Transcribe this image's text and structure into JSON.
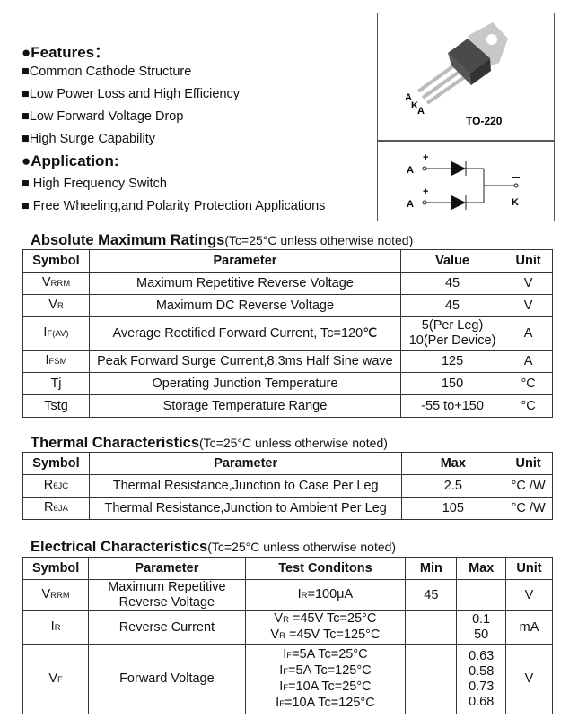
{
  "features": {
    "title": "●Features：",
    "items": [
      "■Common Cathode Structure",
      "■Low Power Loss and High Efficiency",
      "■Low Forward Voltage Drop",
      "■High Surge Capability"
    ]
  },
  "application": {
    "title": "●Application:",
    "items": [
      "■  High Frequency Switch",
      "■  Free Wheeling,and Polarity Protection Applications"
    ]
  },
  "package": {
    "name": "TO-220",
    "pins": [
      "A",
      "K",
      "A"
    ],
    "schematic": {
      "anode_labels": [
        "A",
        "A"
      ],
      "cathode_label": "K",
      "plus": "+",
      "minus": "—"
    }
  },
  "abs_max": {
    "title": "Absolute Maximum Ratings",
    "note": "(Tc=25°C unless otherwise noted)",
    "headers": [
      "Symbol",
      "Parameter",
      "Value",
      "Unit"
    ],
    "rows": [
      [
        {
          "b": "V",
          "s": "RRM"
        },
        "Maximum Repetitive Reverse Voltage",
        "45",
        "V"
      ],
      [
        {
          "b": "V",
          "s": "R"
        },
        "Maximum DC Reverse Voltage",
        "45",
        "V"
      ],
      [
        {
          "b": "I",
          "s": "F(AV)"
        },
        "Average Rectified Forward Current, Tc=120℃",
        [
          "5(Per Leg)",
          "10(Per Device)"
        ],
        "A"
      ],
      [
        {
          "b": "I",
          "s": "FSM"
        },
        "Peak Forward Surge Current,8.3ms Half Sine wave",
        "125",
        "A"
      ],
      [
        "Tj",
        "Operating Junction Temperature",
        "150",
        "°C"
      ],
      [
        "Tstg",
        "Storage Temperature Range",
        "-55 to+150",
        "°C"
      ]
    ]
  },
  "thermal": {
    "title": "Thermal Characteristics",
    "note": "(Tc=25°C unless otherwise noted)",
    "headers": [
      "Symbol",
      "Parameter",
      "Max",
      "Unit"
    ],
    "rows": [
      [
        {
          "b": "R",
          "s": "θJC"
        },
        "Thermal Resistance,Junction to Case Per Leg",
        "2.5",
        "°C /W"
      ],
      [
        {
          "b": "R",
          "s": "θJA"
        },
        "Thermal Resistance,Junction to Ambient Per Leg",
        "105",
        "°C /W"
      ]
    ]
  },
  "electrical": {
    "title": "Electrical Characteristics",
    "note": "(Tc=25°C unless otherwise noted)",
    "headers": [
      "Symbol",
      "Parameter",
      "Test Conditons",
      "Min",
      "Max",
      "Unit"
    ],
    "rows": [
      [
        {
          "b": "V",
          "s": "RRM"
        },
        [
          "Maximum Repetitive",
          "Reverse Voltage"
        ],
        [
          {
            "b": "I",
            "s": "R",
            "r": "=100μA"
          }
        ],
        "45",
        "",
        "V"
      ],
      [
        {
          "b": "I",
          "s": "R"
        },
        "Reverse Current",
        [
          {
            "b": "V",
            "s": "R",
            "r": " =45V   Tc=25°C"
          },
          {
            "b": "V",
            "s": "R",
            "r": " =45V   Tc=125°C"
          }
        ],
        "",
        [
          "0.1",
          "50"
        ],
        "mA"
      ],
      [
        {
          "b": "V",
          "s": "F"
        },
        "Forward Voltage",
        [
          {
            "b": "I",
            "s": "F",
            "r": "=5A   Tc=25°C"
          },
          {
            "b": "I",
            "s": "F",
            "r": "=5A   Tc=125°C"
          },
          {
            "b": "I",
            "s": "F",
            "r": "=10A   Tc=25°C"
          },
          {
            "b": "I",
            "s": "F",
            "r": "=10A   Tc=125°C"
          }
        ],
        "",
        [
          "0.63",
          "0.58",
          "0.73",
          "0.68"
        ],
        "V"
      ]
    ]
  }
}
